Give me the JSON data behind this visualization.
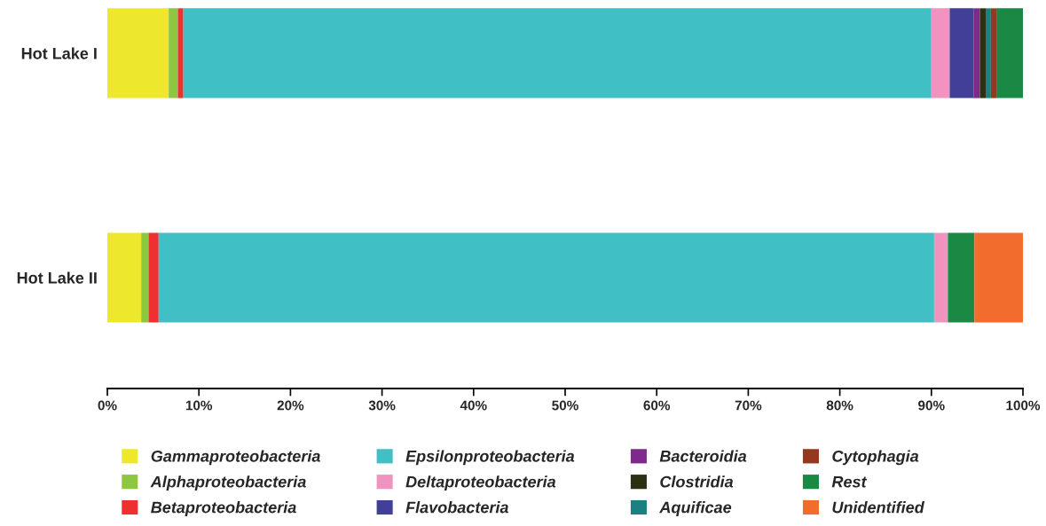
{
  "chart_data": {
    "type": "bar",
    "orientation": "horizontal",
    "stacked": true,
    "categories": [
      "Hot Lake I",
      "Hot Lake II"
    ],
    "series": [
      {
        "name": "Gammaproteobacteria",
        "color": "#ede82c",
        "values": [
          6.7,
          3.7
        ]
      },
      {
        "name": "Alphaproteobacteria",
        "color": "#8dc63f",
        "values": [
          1.0,
          0.8
        ]
      },
      {
        "name": "Betaproteobacteria",
        "color": "#ee3030",
        "values": [
          0.6,
          1.1
        ]
      },
      {
        "name": "Epsilonproteobacteria",
        "color": "#40bfc4",
        "values": [
          81.7,
          84.7
        ]
      },
      {
        "name": "Deltaproteobacteria",
        "color": "#f193bf",
        "values": [
          2.0,
          1.5
        ]
      },
      {
        "name": "Flavobacteria",
        "color": "#413f97",
        "values": [
          2.6,
          0
        ]
      },
      {
        "name": "Bacteroidia",
        "color": "#7d2a8a",
        "values": [
          0.7,
          0
        ]
      },
      {
        "name": "Clostridia",
        "color": "#2d3013",
        "values": [
          0.7,
          0
        ]
      },
      {
        "name": "Aquificae",
        "color": "#1a8080",
        "values": [
          0.5,
          0
        ]
      },
      {
        "name": "Cytophagia",
        "color": "#94391f",
        "values": [
          0.6,
          0
        ]
      },
      {
        "name": "Rest",
        "color": "#1a8944",
        "values": [
          2.9,
          2.9
        ]
      },
      {
        "name": "Unidentified",
        "color": "#f26d2d",
        "values": [
          0,
          5.3
        ]
      }
    ],
    "xlim": [
      0,
      100
    ],
    "xticks": [
      {
        "value": 0,
        "label": "0%"
      },
      {
        "value": 10,
        "label": "10%"
      },
      {
        "value": 20,
        "label": "20%"
      },
      {
        "value": 30,
        "label": "30%"
      },
      {
        "value": 40,
        "label": "40%"
      },
      {
        "value": 50,
        "label": "50%"
      },
      {
        "value": 60,
        "label": "60%"
      },
      {
        "value": 70,
        "label": "70%"
      },
      {
        "value": 80,
        "label": "80%"
      },
      {
        "value": 90,
        "label": "90%"
      },
      {
        "value": 100,
        "label": "100%"
      }
    ],
    "grid": false,
    "legend": "bottom"
  }
}
